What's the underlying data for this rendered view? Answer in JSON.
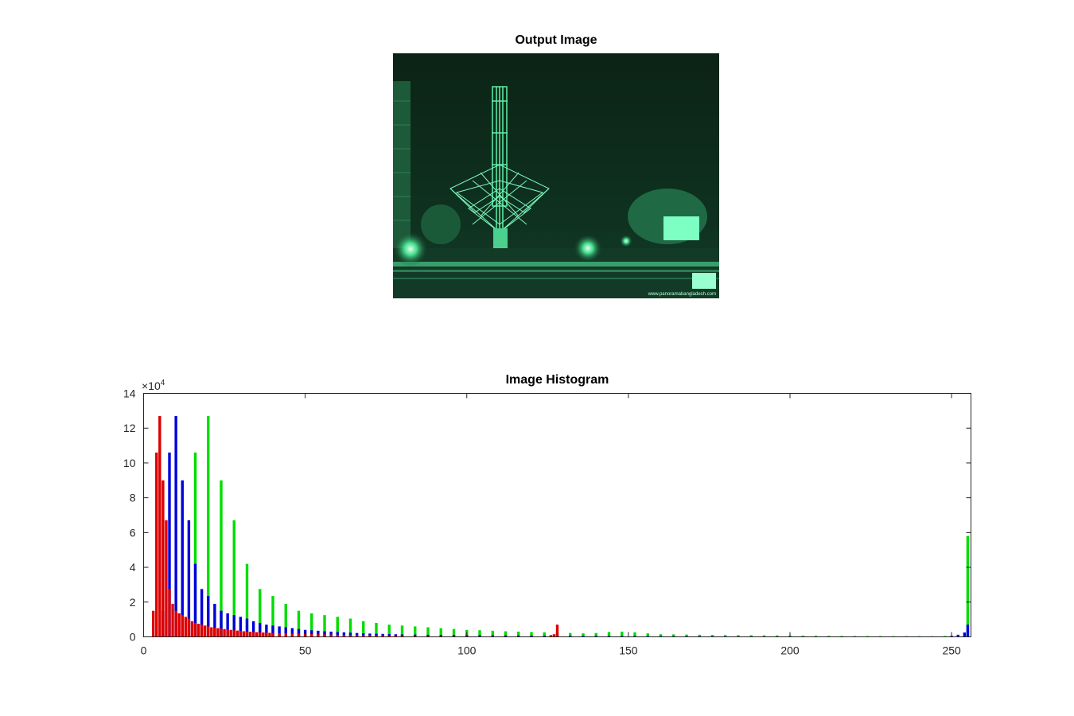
{
  "figure": {
    "image_title": "Output Image",
    "watermark": "www.panoramabangladesh.com",
    "image_tint": "#34e08c"
  },
  "chart_data": {
    "type": "bar",
    "title": "Image Histogram",
    "xlabel": "",
    "ylabel": "",
    "xlim": [
      0,
      256
    ],
    "ylim": [
      0,
      140000
    ],
    "y_exponent_label": "×10",
    "y_exponent_power": "4",
    "x_ticks": [
      0,
      50,
      100,
      150,
      200,
      250
    ],
    "y_ticks": [
      0,
      2,
      4,
      6,
      8,
      10,
      12,
      14
    ],
    "y_tick_scale": 10000,
    "grid": false,
    "series": [
      {
        "color": "#00dd00",
        "x": [
          6,
          12,
          16,
          20,
          24,
          28,
          32,
          36,
          40,
          44,
          48,
          52,
          56,
          60,
          64,
          68,
          72,
          76,
          80,
          84,
          88,
          92,
          96,
          100,
          104,
          108,
          112,
          116,
          120,
          124,
          128,
          132,
          136,
          140,
          144,
          148,
          152,
          156,
          160,
          164,
          168,
          172,
          176,
          180,
          184,
          188,
          192,
          196,
          200,
          204,
          208,
          212,
          216,
          220,
          224,
          228,
          232,
          236,
          240,
          244,
          248,
          255
        ],
        "values": [
          1500,
          3000,
          106000,
          127000,
          90000,
          67000,
          42000,
          27500,
          23500,
          19000,
          15000,
          13500,
          12500,
          11500,
          10500,
          9000,
          8000,
          7000,
          6500,
          6000,
          5500,
          5000,
          4500,
          4000,
          3800,
          3500,
          3200,
          3000,
          2800,
          2600,
          2400,
          2200,
          2000,
          2200,
          2800,
          3000,
          2600,
          2000,
          1500,
          1400,
          1300,
          1200,
          1100,
          1000,
          950,
          900,
          850,
          800,
          750,
          700,
          650,
          600,
          550,
          500,
          480,
          460,
          440,
          420,
          400,
          380,
          500,
          58000
        ]
      },
      {
        "color": "#0000dd",
        "x": [
          6,
          8,
          10,
          12,
          14,
          16,
          18,
          20,
          22,
          24,
          26,
          28,
          30,
          32,
          34,
          36,
          38,
          40,
          42,
          44,
          46,
          48,
          50,
          52,
          54,
          56,
          58,
          60,
          62,
          64,
          66,
          68,
          70,
          72,
          74,
          76,
          78,
          80,
          84,
          88,
          92,
          96,
          100,
          104,
          108,
          112,
          116,
          120,
          124,
          128,
          132,
          136,
          140,
          144,
          148,
          152,
          156,
          160,
          164,
          168,
          172,
          176,
          180,
          184,
          188,
          192,
          196,
          200,
          204,
          208,
          212,
          216,
          220,
          224,
          228,
          232,
          236,
          240,
          244,
          248,
          250,
          252,
          254,
          255
        ],
        "values": [
          15000,
          106000,
          127000,
          90000,
          67000,
          42000,
          27500,
          23500,
          19000,
          15000,
          13500,
          12500,
          11500,
          10500,
          9000,
          8000,
          7000,
          6500,
          6000,
          5500,
          5000,
          4500,
          4000,
          3800,
          3500,
          3200,
          3000,
          2800,
          2600,
          2400,
          2200,
          2000,
          1900,
          1800,
          1700,
          1600,
          1500,
          1400,
          1300,
          1200,
          1100,
          1000,
          950,
          900,
          850,
          800,
          750,
          700,
          650,
          600,
          580,
          560,
          540,
          520,
          500,
          480,
          460,
          440,
          420,
          400,
          380,
          360,
          340,
          320,
          300,
          290,
          280,
          270,
          260,
          250,
          240,
          230,
          220,
          210,
          200,
          190,
          180,
          170,
          160,
          150,
          600,
          1200,
          2500,
          7000
        ]
      },
      {
        "color": "#dd0000",
        "x": [
          3,
          4,
          5,
          6,
          7,
          8,
          9,
          10,
          11,
          12,
          13,
          14,
          15,
          16,
          17,
          18,
          19,
          20,
          21,
          22,
          23,
          24,
          25,
          26,
          27,
          28,
          29,
          30,
          31,
          32,
          33,
          34,
          35,
          36,
          37,
          38,
          39,
          40,
          42,
          44,
          46,
          48,
          50,
          52,
          54,
          56,
          58,
          60,
          62,
          64,
          66,
          68,
          70,
          72,
          74,
          76,
          78,
          80,
          84,
          88,
          92,
          96,
          100,
          104,
          108,
          112,
          116,
          120,
          124,
          126,
          127,
          128
        ],
        "values": [
          15000,
          106000,
          127000,
          90000,
          67000,
          27500,
          19000,
          15000,
          13500,
          12500,
          11500,
          10500,
          9000,
          8000,
          7500,
          7000,
          6500,
          6000,
          5500,
          5200,
          5000,
          4800,
          4500,
          4200,
          4000,
          3800,
          3600,
          3400,
          3200,
          3000,
          2900,
          2800,
          2700,
          2600,
          2500,
          2400,
          2300,
          2200,
          2100,
          2000,
          1900,
          1800,
          1700,
          1600,
          1500,
          1400,
          1300,
          1200,
          1100,
          1000,
          950,
          900,
          850,
          800,
          750,
          700,
          650,
          600,
          550,
          500,
          450,
          400,
          380,
          360,
          340,
          320,
          300,
          280,
          260,
          1000,
          1500,
          7000
        ]
      }
    ]
  }
}
